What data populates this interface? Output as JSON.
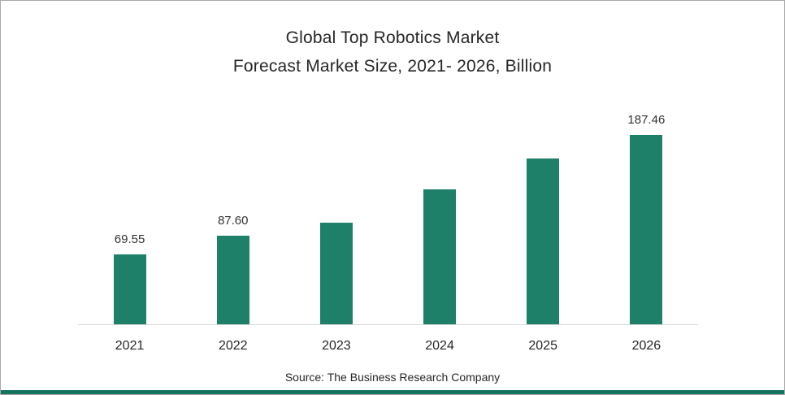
{
  "chart_data": {
    "type": "bar",
    "title": "Global Top Robotics Market Forecast Market Size, 2021- 2026, Billion",
    "title_line1": "Global Top Robotics Market",
    "title_line2": "Forecast Market Size, 2021- 2026, Billion",
    "categories": [
      "2021",
      "2022",
      "2023",
      "2024",
      "2025",
      "2026"
    ],
    "values": [
      69.55,
      87.6,
      100.5,
      133.5,
      164.5,
      187.46
    ],
    "data_labels": [
      "69.55",
      "87.60",
      "",
      "",
      "",
      "187.46"
    ],
    "xlabel": "",
    "ylabel": "",
    "ylim": [
      0,
      200
    ],
    "grid": false,
    "legend": false,
    "source": "Source: The Business Research Company"
  },
  "colors": {
    "bar": "#1E8068",
    "bottom_strip": "#17735E",
    "axis": "#d6d6d6"
  }
}
